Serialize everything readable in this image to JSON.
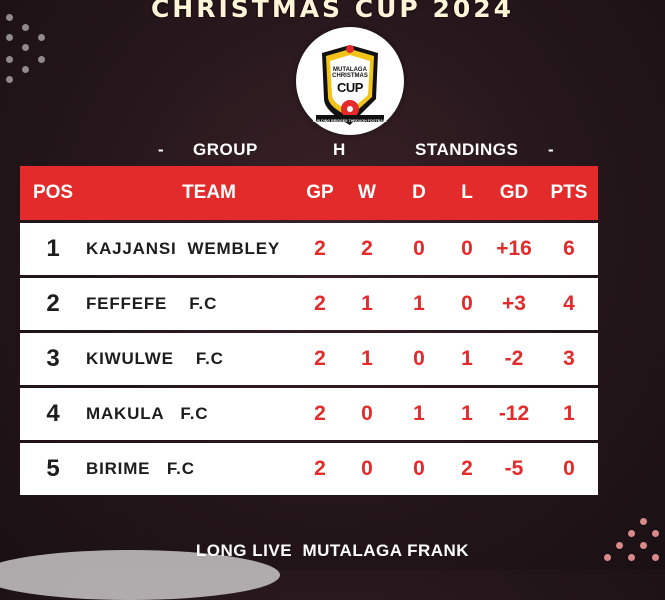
{
  "header": {
    "title": "CHRISTMAS CUP 2024"
  },
  "logo": {
    "line1": "MUTALAGA",
    "line2": "CHRISTMAS",
    "line3": "CUP",
    "ribbon": "BUILDING BRIDGES THROUGH FOOTBALL"
  },
  "subheader": {
    "dash_left": "-",
    "group_label": "GROUP",
    "group_letter": "H",
    "standings_label": "STANDINGS",
    "dash_right": "-"
  },
  "table": {
    "columns": {
      "pos": "POS",
      "team": "TEAM",
      "gp": "GP",
      "w": "W",
      "d": "D",
      "l": "L",
      "gd": "GD",
      "pts": "PTS"
    },
    "rows": [
      {
        "pos": "1",
        "team": "KAJJANSI  WEMBLEY",
        "gp": "2",
        "w": "2",
        "d": "0",
        "l": "0",
        "gd": "+16",
        "pts": "6"
      },
      {
        "pos": "2",
        "team": "FEFFEFE    F.C",
        "gp": "2",
        "w": "1",
        "d": "1",
        "l": "0",
        "gd": "+3",
        "pts": "4"
      },
      {
        "pos": "3",
        "team": "KIWULWE    F.C",
        "gp": "2",
        "w": "1",
        "d": "0",
        "l": "1",
        "gd": "-2",
        "pts": "3"
      },
      {
        "pos": "4",
        "team": "MAKULA   F.C",
        "gp": "2",
        "w": "0",
        "d": "1",
        "l": "1",
        "gd": "-12",
        "pts": "1"
      },
      {
        "pos": "5",
        "team": "BIRIME   F.C",
        "gp": "2",
        "w": "0",
        "d": "0",
        "l": "2",
        "gd": "-5",
        "pts": "0"
      }
    ]
  },
  "footer": {
    "text": "LONG LIVE  MUTALAGA FRANK"
  },
  "colors": {
    "accent": "#e32b2b",
    "background": "#24161b",
    "title": "#fff4d8"
  }
}
